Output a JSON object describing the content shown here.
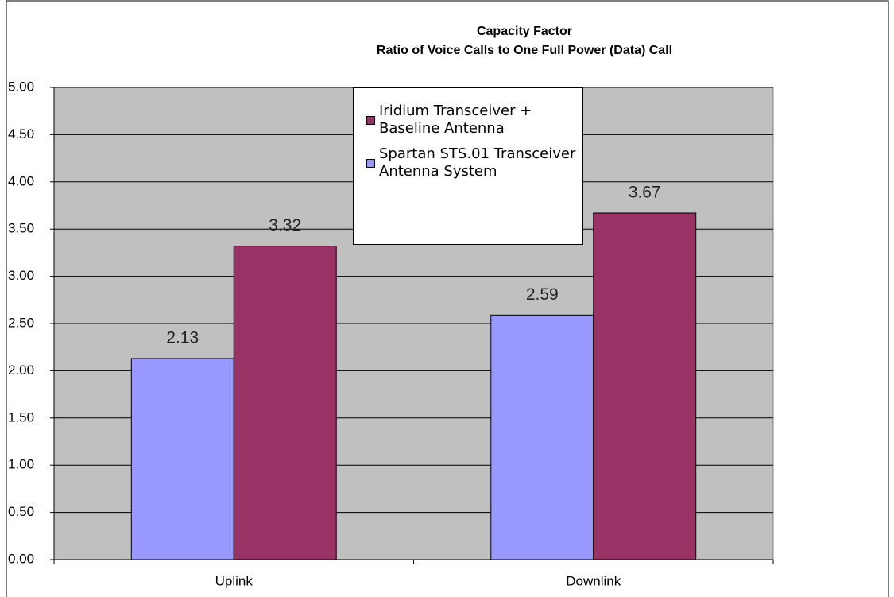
{
  "chart_data": {
    "type": "bar",
    "title": "Capacity Factor",
    "subtitle": "Ratio of Voice Calls to One Full Power (Data) Call",
    "categories": [
      "Uplink",
      "Downlink"
    ],
    "series": [
      {
        "name": "Spartan STS.01 Transceiver Antenna System",
        "color": "#9999ff",
        "values": [
          2.13,
          2.59
        ]
      },
      {
        "name": "Iridium Transceiver + Baseline Antenna",
        "color": "#993366",
        "values": [
          3.32,
          3.67
        ]
      }
    ],
    "ylim": [
      0,
      5
    ],
    "yticks": [
      {
        "value": 0,
        "label": "0.00"
      },
      {
        "value": 0.5,
        "label": "0.50"
      },
      {
        "value": 1,
        "label": "1.00"
      },
      {
        "value": 1.5,
        "label": "1.50"
      },
      {
        "value": 2,
        "label": "2.00"
      },
      {
        "value": 2.5,
        "label": "2.50"
      },
      {
        "value": 3,
        "label": "3.00"
      },
      {
        "value": 3.5,
        "label": "3.50"
      },
      {
        "value": 4,
        "label": "4.00"
      },
      {
        "value": 4.5,
        "label": "4.50"
      },
      {
        "value": 5,
        "label": "5.00"
      }
    ],
    "grid": true
  }
}
